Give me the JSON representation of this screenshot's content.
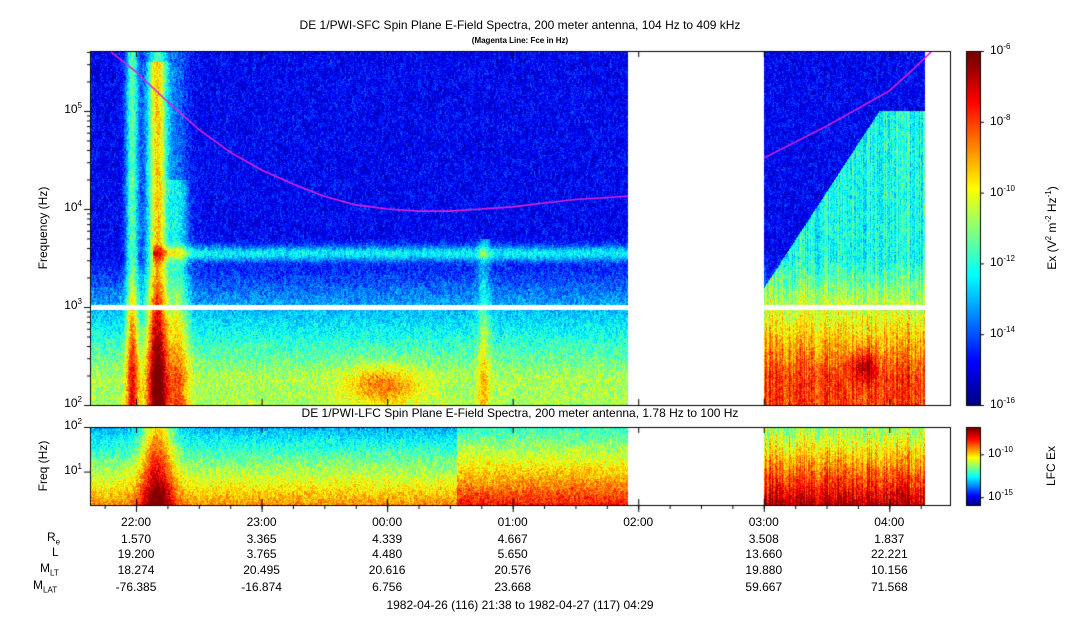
{
  "top_panel": {
    "title": "DE 1/PWI-SFC  Spin Plane E-Field Spectra, 200 meter antenna, 104 Hz to 409 kHz",
    "subtitle": "(Magenta Line: Fce in Hz)",
    "ylabel": "Frequency (Hz)"
  },
  "bottom_panel": {
    "title": "DE 1/PWI-LFC  Spin Plane E-Field Spectra, 200 meter antenna, 1.78 Hz to 100 Hz",
    "ylabel": "Freq (Hz)",
    "colorbar_label": "LFC Ex"
  },
  "time_range": "1982-04-26 (116) 21:38 to 1982-04-27 (117) 04:29",
  "ephemeris": {
    "row_labels": [
      "Re",
      "L",
      "MLT",
      "MLAT"
    ],
    "columns": [
      {
        "time": "22:00",
        "values": [
          "1.570",
          "19.200",
          "18.274",
          "-76.385"
        ]
      },
      {
        "time": "23:00",
        "values": [
          "3.365",
          "3.765",
          "20.495",
          "-16.874"
        ]
      },
      {
        "time": "00:00",
        "values": [
          "4.339",
          "4.480",
          "20.616",
          "6.756"
        ]
      },
      {
        "time": "01:00",
        "values": [
          "4.667",
          "5.650",
          "20.576",
          "23.668"
        ]
      },
      {
        "time": "02:00",
        "values": [
          "",
          "",
          "",
          ""
        ]
      },
      {
        "time": "03:00",
        "values": [
          "3.508",
          "13.660",
          "19.880",
          "59.667"
        ]
      },
      {
        "time": "04:00",
        "values": [
          "1.837",
          "22.221",
          "10.156",
          "71.568"
        ]
      }
    ]
  },
  "chart_data": [
    {
      "type": "heatmap",
      "title": "DE 1/PWI-SFC  Spin Plane E-Field Spectra, 200 meter antenna, 104 Hz to 409 kHz",
      "subtitle": "(Magenta Line: Fce in Hz)",
      "xlabel": "",
      "ylabel": "Frequency (Hz)",
      "y_scale": "log",
      "y_ticks": [
        "10^2",
        "10^3",
        "10^4",
        "10^5"
      ],
      "ylim": [
        100,
        409000
      ],
      "x_ticks": [
        "22:00",
        "23:00",
        "00:00",
        "01:00",
        "02:00",
        "03:00",
        "04:00"
      ],
      "xlim": [
        "21:38",
        "04:29"
      ],
      "data_gaps": [
        [
          "01:55",
          "03:00"
        ]
      ],
      "colorbar": {
        "label": "Ex (V^2 m^-2 Hz^-1)",
        "scale": "log",
        "range": [
          1e-16,
          1e-06
        ],
        "ticks": [
          "10^-6",
          "10^-8",
          "10^-10",
          "10^-12",
          "10^-14",
          "10^-16"
        ]
      },
      "series": [
        {
          "name": "Fce",
          "color": "#e020e0",
          "points": [
            [
              "21:48",
              400000
            ],
            [
              "22:00",
              250000
            ],
            [
              "22:15",
              125000
            ],
            [
              "22:30",
              65000
            ],
            [
              "22:45",
              38000
            ],
            [
              "23:00",
              25000
            ],
            [
              "23:15",
              18000
            ],
            [
              "23:30",
              13500
            ],
            [
              "23:45",
              11000
            ],
            [
              "00:00",
              10000
            ],
            [
              "00:15",
              9500
            ],
            [
              "00:30",
              9500
            ],
            [
              "00:45",
              10000
            ],
            [
              "01:00",
              10500
            ],
            [
              "01:15",
              11500
            ],
            [
              "01:30",
              12500
            ],
            [
              "01:55",
              13500
            ],
            [
              "03:00",
              33000
            ],
            [
              "03:30",
              70000
            ],
            [
              "04:00",
              160000
            ],
            [
              "04:10",
              250000
            ],
            [
              "04:20",
              400000
            ]
          ]
        }
      ],
      "features": [
        {
          "description": "broadband intense emission",
          "x_range": [
            "21:45",
            "22:20"
          ],
          "y_range": [
            100,
            400000
          ]
        },
        {
          "description": "band near 3-4 kHz",
          "x_range": [
            "22:10",
            "01:55"
          ],
          "y_range": [
            2500,
            4500
          ]
        },
        {
          "description": "emission enhancement",
          "x_range": [
            "03:00",
            "04:10"
          ],
          "y_range": [
            1000,
            200000
          ]
        }
      ]
    },
    {
      "type": "heatmap",
      "title": "DE 1/PWI-LFC  Spin Plane E-Field Spectra, 200 meter antenna, 1.78 Hz to 100 Hz",
      "xlabel": "",
      "ylabel": "Freq (Hz)",
      "y_scale": "log",
      "y_ticks": [
        "10^1",
        "10^2"
      ],
      "ylim": [
        1.78,
        100
      ],
      "xlim": [
        "21:38",
        "04:29"
      ],
      "data_gaps": [
        [
          "01:55",
          "03:00"
        ]
      ],
      "colorbar": {
        "label": "LFC Ex",
        "scale": "log",
        "range": [
          1e-16,
          1e-08
        ],
        "ticks": [
          "10^-10",
          "10^-15"
        ]
      }
    }
  ]
}
